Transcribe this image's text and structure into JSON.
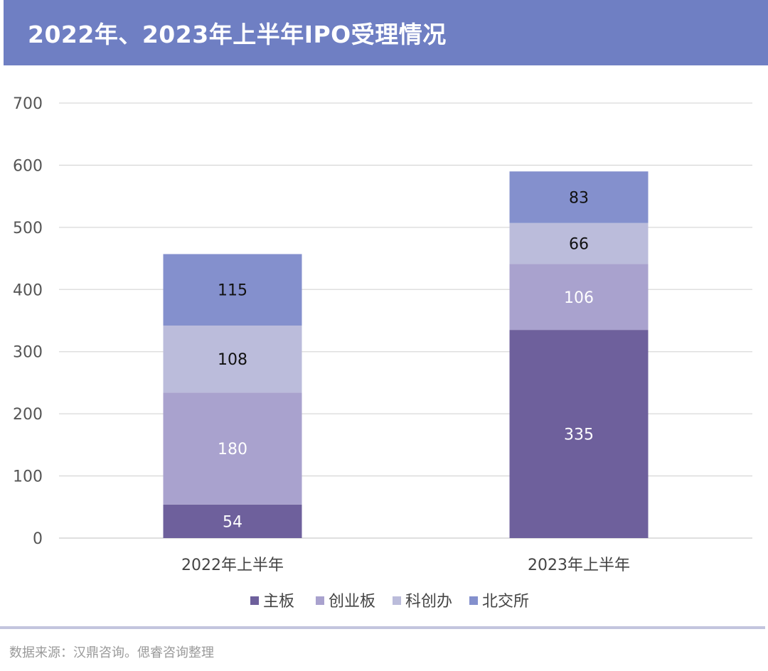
{
  "chart_data": {
    "type": "bar",
    "stacked": true,
    "title": "2022年、2023年上半年IPO受理情况",
    "categories": [
      "2022年上半年",
      "2023年上半年"
    ],
    "series": [
      {
        "name": "主板",
        "values": [
          54,
          335
        ],
        "color": "#6e609c",
        "label_color": "#ffffff"
      },
      {
        "name": "创业板",
        "values": [
          180,
          106
        ],
        "color": "#a9a2ce",
        "label_color": "#ffffff"
      },
      {
        "name": "科创办",
        "values": [
          108,
          66
        ],
        "color": "#bbbcdb",
        "label_color": "#111111"
      },
      {
        "name": "北交所",
        "values": [
          115,
          83
        ],
        "color": "#8490cd",
        "label_color": "#111111"
      }
    ],
    "ylim": [
      0,
      700
    ],
    "yticks": [
      0,
      100,
      200,
      300,
      400,
      500,
      600,
      700
    ],
    "grid": true,
    "legend_position": "bottom"
  },
  "source_note": "数据来源：汉鼎咨询。偲睿咨询整理"
}
